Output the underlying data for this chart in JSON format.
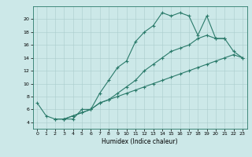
{
  "xlabel": "Humidex (Indice chaleur)",
  "ylabel": "",
  "xlim": [
    -0.5,
    23.5
  ],
  "ylim": [
    3,
    22
  ],
  "xticks": [
    0,
    1,
    2,
    3,
    4,
    5,
    6,
    7,
    8,
    9,
    10,
    11,
    12,
    13,
    14,
    15,
    16,
    17,
    18,
    19,
    20,
    21,
    22,
    23
  ],
  "yticks": [
    4,
    6,
    8,
    10,
    12,
    14,
    16,
    18,
    20
  ],
  "bg_color": "#cce8e8",
  "line_color": "#2a7a6a",
  "line1_x": [
    0,
    1,
    2,
    3,
    4,
    5,
    6,
    7,
    8,
    9,
    10,
    11,
    12,
    13,
    14,
    15,
    16,
    17,
    18,
    19,
    20,
    21,
    22,
    23
  ],
  "line1_y": [
    7,
    5,
    4.5,
    4.5,
    4.5,
    6,
    6,
    8.5,
    10.5,
    12.5,
    13.5,
    16.5,
    18,
    19,
    21,
    20.5,
    21,
    20.5,
    17.5,
    20.5,
    17,
    17,
    15,
    14
  ],
  "line2_x": [
    2,
    3,
    4,
    5,
    6,
    7,
    8,
    9,
    10,
    11,
    12,
    13,
    14,
    15,
    16,
    17,
    18,
    19,
    20,
    21,
    22,
    23
  ],
  "line2_y": [
    4.5,
    4.5,
    5,
    5.5,
    6,
    7,
    7.5,
    8,
    8.5,
    9,
    9.5,
    10,
    10.5,
    11,
    11.5,
    12,
    12.5,
    13,
    13.5,
    14,
    14.5,
    14
  ],
  "line3_x": [
    3,
    4,
    5,
    6,
    7,
    8,
    9,
    10,
    11,
    12,
    13,
    14,
    15,
    16,
    17,
    18,
    19,
    20,
    21
  ],
  "line3_y": [
    4.5,
    5,
    5.5,
    6,
    7,
    7.5,
    8.5,
    9.5,
    10.5,
    12,
    13,
    14,
    15,
    15.5,
    16,
    17,
    17.5,
    17,
    17
  ]
}
